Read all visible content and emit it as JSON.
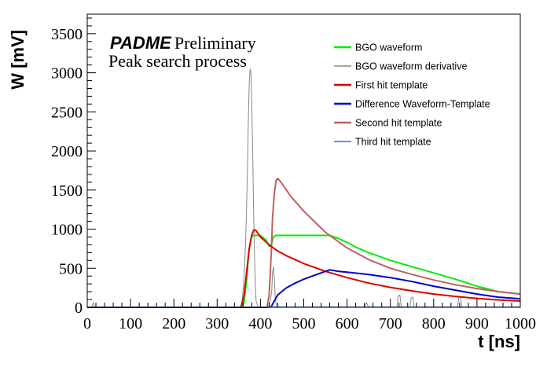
{
  "chart_data": {
    "type": "line",
    "title": "",
    "xlabel": "t [ns]",
    "ylabel": "W [mV]",
    "xlim": [
      0,
      1000
    ],
    "ylim": [
      0,
      3750
    ],
    "xticks": [
      0,
      100,
      200,
      300,
      400,
      500,
      600,
      700,
      800,
      900,
      1000
    ],
    "yticks": [
      0,
      500,
      1000,
      1500,
      2000,
      2500,
      3000,
      3500
    ],
    "grid": false,
    "legend_placement": "top-right",
    "annotations": [
      {
        "text": "PADME",
        "style": "bold-italic"
      },
      {
        "text": "Preliminary"
      },
      {
        "text": "Peak search process"
      }
    ],
    "series": [
      {
        "name": "BGO waveform",
        "color": "#00ee00",
        "x": [
          0,
          100,
          200,
          300,
          355,
          362,
          368,
          373,
          378,
          383,
          400,
          413,
          420,
          425,
          430,
          435,
          440,
          500,
          560,
          580,
          600,
          620,
          650,
          680,
          700,
          750,
          800,
          850,
          900,
          950,
          1000
        ],
        "y": [
          0,
          0,
          0,
          0,
          0,
          60,
          350,
          700,
          880,
          920,
          920,
          860,
          780,
          800,
          900,
          920,
          920,
          920,
          920,
          880,
          830,
          770,
          700,
          640,
          600,
          520,
          440,
          360,
          270,
          200,
          170
        ]
      },
      {
        "name": "BGO waveform derivative",
        "color": "#888888",
        "x": [
          0,
          10,
          14,
          18,
          300,
          350,
          355,
          358,
          361,
          364,
          366,
          368,
          370,
          372,
          374,
          376,
          378,
          380,
          382,
          384,
          386,
          388,
          390,
          395,
          420,
          426,
          428,
          430,
          432,
          434,
          436,
          438,
          440,
          460,
          600,
          640,
          645,
          650,
          700,
          715,
          718,
          722,
          725,
          745,
          748,
          752,
          755,
          800,
          855,
          858,
          862,
          865,
          900,
          1000
        ],
        "y": [
          0,
          0,
          60,
          0,
          0,
          0,
          20,
          100,
          300,
          600,
          900,
          1300,
          1800,
          2400,
          2850,
          3050,
          3000,
          2600,
          2000,
          1300,
          700,
          300,
          80,
          0,
          0,
          200,
          450,
          520,
          380,
          150,
          50,
          0,
          0,
          0,
          0,
          0,
          60,
          0,
          0,
          0,
          140,
          160,
          0,
          0,
          120,
          130,
          0,
          0,
          0,
          130,
          140,
          0,
          0,
          0
        ]
      },
      {
        "name": "First hit template",
        "color": "#dd0000",
        "x": [
          0,
          100,
          200,
          300,
          355,
          362,
          368,
          374,
          380,
          385,
          390,
          395,
          400,
          420,
          440,
          460,
          480,
          500,
          550,
          600,
          650,
          700,
          750,
          800,
          850,
          900,
          950,
          1000
        ],
        "y": [
          0,
          0,
          0,
          0,
          0,
          150,
          450,
          750,
          930,
          990,
          980,
          940,
          900,
          800,
          720,
          660,
          610,
          560,
          460,
          380,
          310,
          255,
          210,
          170,
          140,
          115,
          95,
          80
        ]
      },
      {
        "name": "Difference Waveform-Template",
        "color": "#0000cc",
        "x": [
          0,
          100,
          200,
          300,
          360,
          370,
          385,
          400,
          415,
          425,
          430,
          440,
          460,
          480,
          500,
          520,
          540,
          560,
          580,
          600,
          650,
          700,
          750,
          800,
          850,
          900,
          950,
          1000
        ],
        "y": [
          0,
          0,
          0,
          0,
          0,
          0,
          -30,
          -60,
          -40,
          10,
          60,
          160,
          250,
          310,
          360,
          400,
          440,
          480,
          460,
          450,
          420,
          380,
          330,
          270,
          220,
          170,
          130,
          110
        ]
      },
      {
        "name": "Second hit template",
        "color": "#c06060",
        "x": [
          0,
          100,
          200,
          300,
          400,
          415,
          420,
          425,
          428,
          432,
          436,
          440,
          450,
          470,
          500,
          550,
          600,
          650,
          700,
          750,
          800,
          850,
          900,
          950,
          1000
        ],
        "y": [
          0,
          0,
          0,
          0,
          0,
          0,
          150,
          700,
          1150,
          1450,
          1620,
          1650,
          1580,
          1420,
          1230,
          960,
          760,
          610,
          500,
          420,
          350,
          290,
          240,
          200,
          170
        ]
      },
      {
        "name": "Third hit template",
        "color": "#6b8fd8",
        "x": [
          0,
          1000
        ],
        "y": [
          5,
          5
        ]
      }
    ]
  }
}
